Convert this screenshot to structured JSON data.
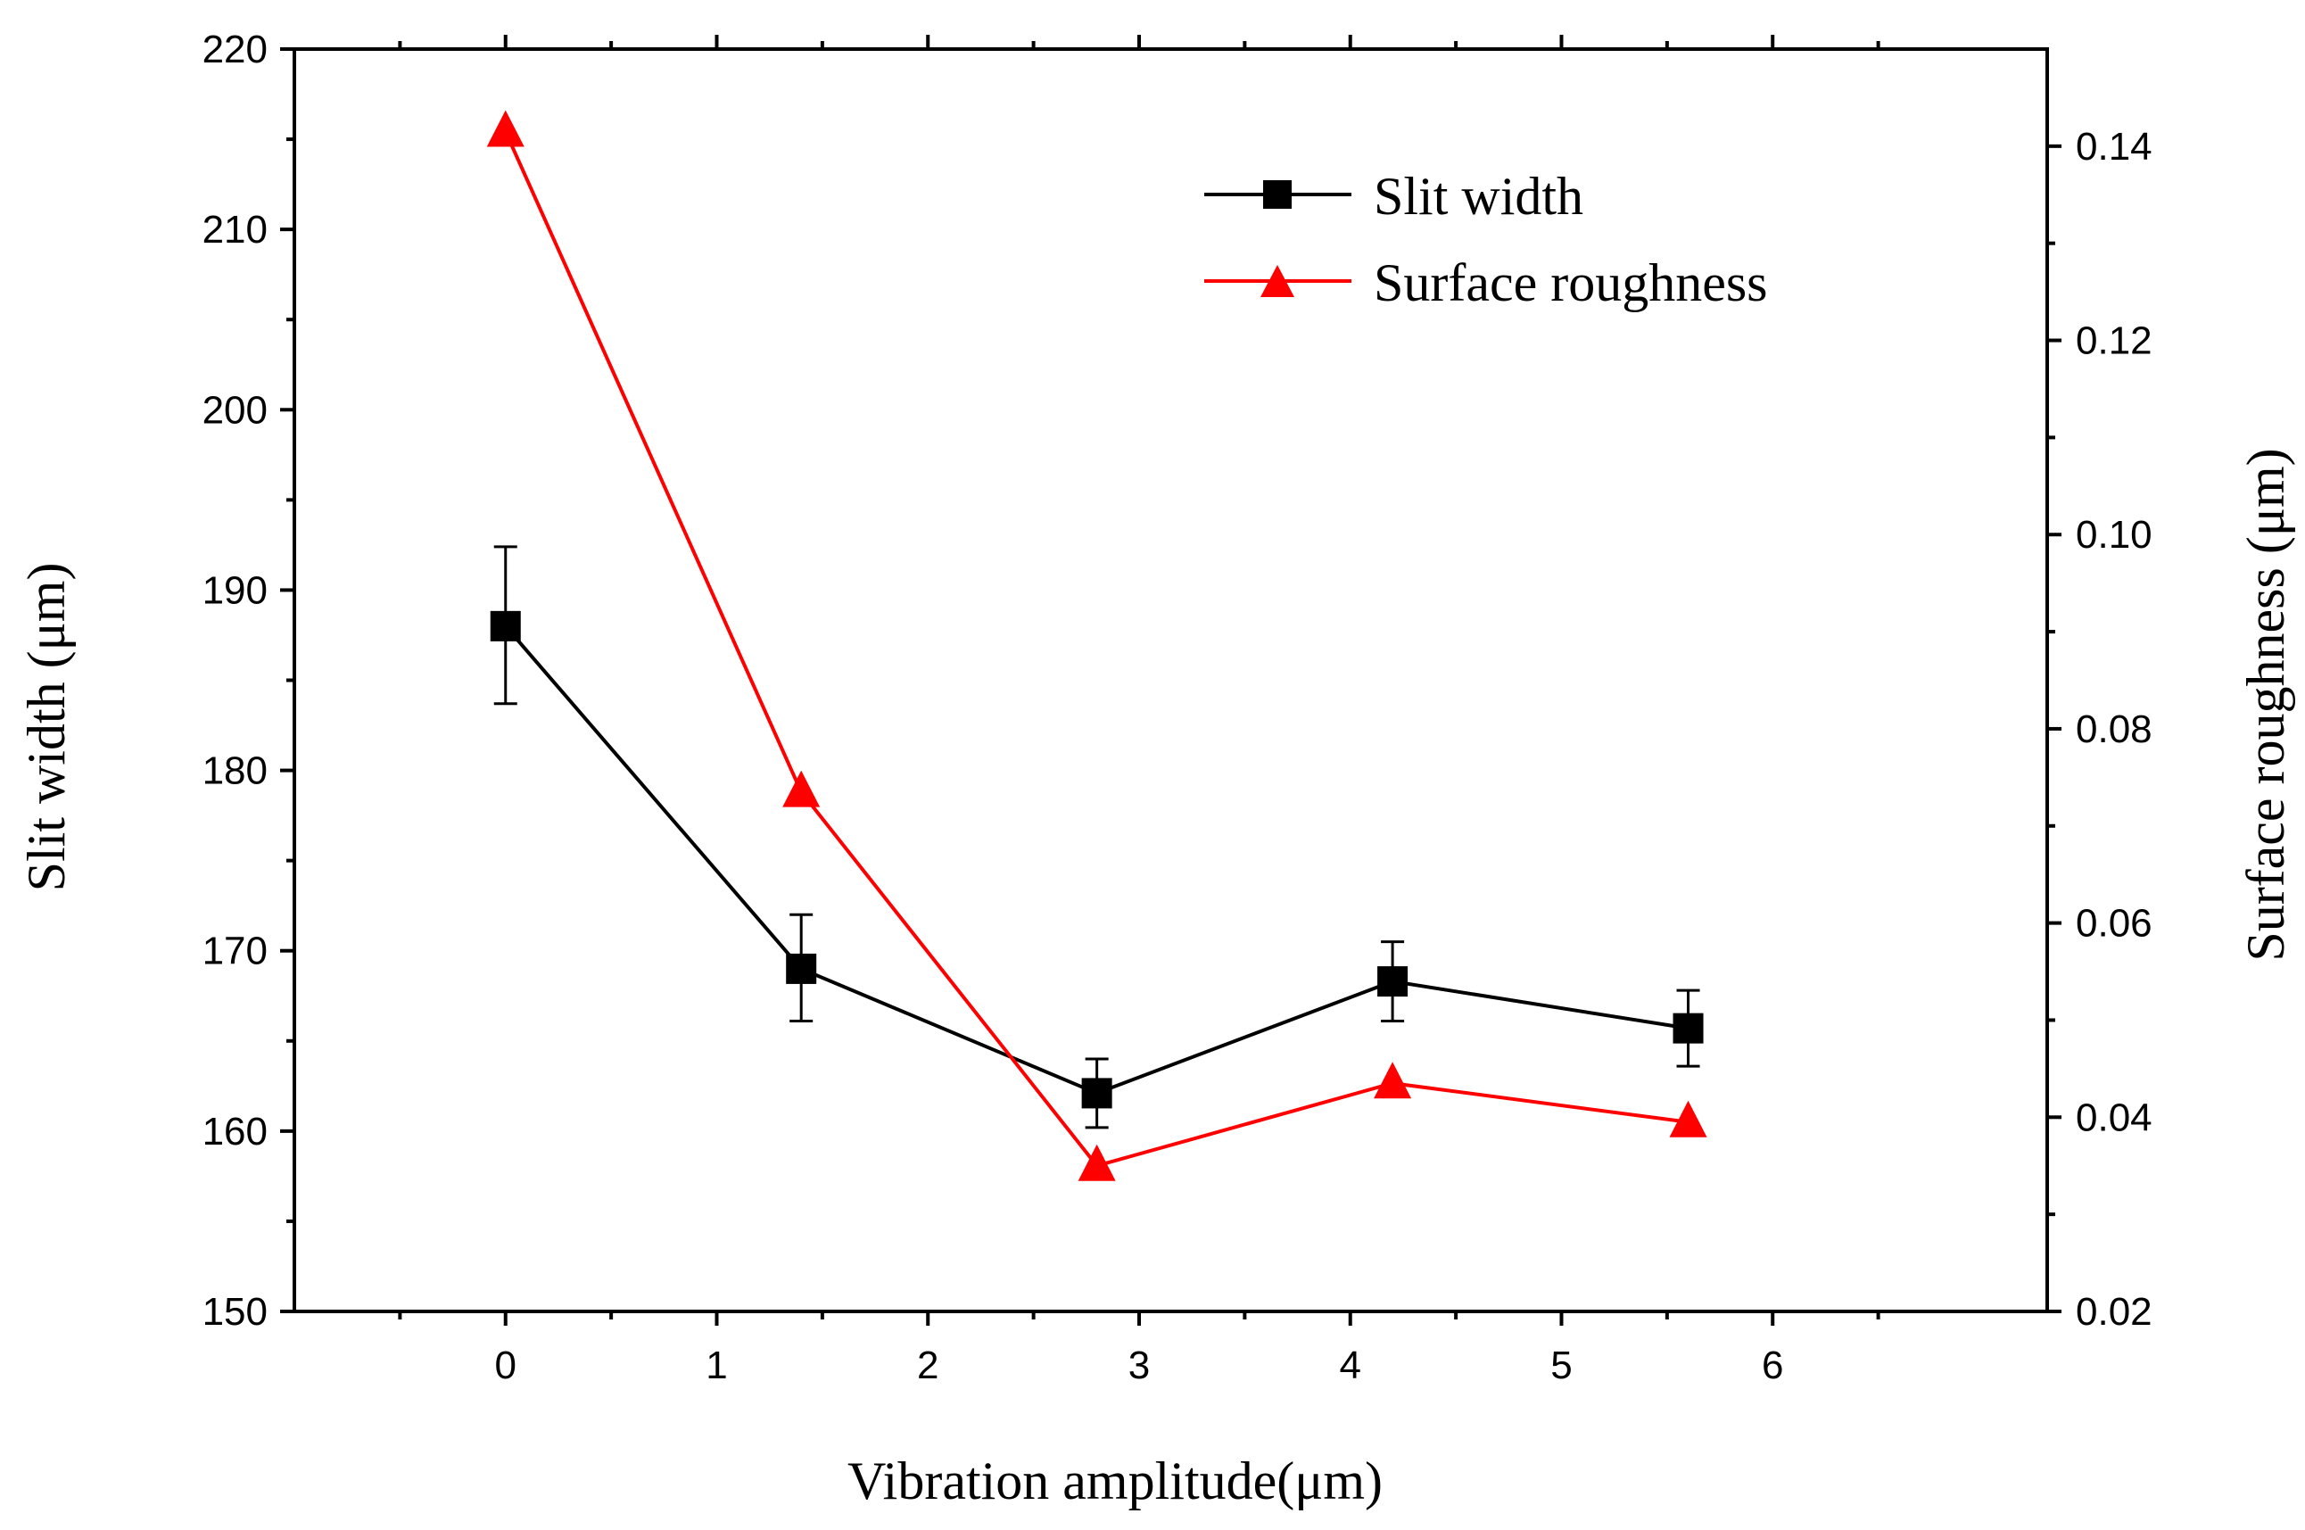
{
  "chart_data": {
    "type": "line",
    "title": "",
    "xlabel": "Vibration amplitude(μm)",
    "ylabel_left": "Slit width  (μm)",
    "ylabel_right": "Surface roughness (μm)",
    "xlim": [
      -1,
      7.3
    ],
    "ylim_left": [
      150,
      220
    ],
    "ylim_right": [
      0.02,
      0.15
    ],
    "x_ticks": [
      0,
      1,
      2,
      3,
      4,
      5,
      6
    ],
    "x_tick_labels": [
      "0",
      "1",
      "2",
      "3",
      "4",
      "5",
      "6"
    ],
    "y_left_ticks": [
      150,
      160,
      170,
      180,
      190,
      200,
      210,
      220
    ],
    "y_left_tick_labels": [
      "150",
      "160",
      "170",
      "180",
      "190",
      "200",
      "210",
      "220"
    ],
    "y_right_ticks": [
      0.02,
      0.04,
      0.06,
      0.08,
      0.1,
      0.12,
      0.14
    ],
    "y_right_tick_labels": [
      "0.02",
      "0.04",
      "0.06",
      "0.08",
      "0.10",
      "0.12",
      "0.14"
    ],
    "legend_position": "top-right",
    "series": [
      {
        "name": "Slit width",
        "axis": "left",
        "color": "#000000",
        "marker": "square",
        "x": [
          0,
          1.4,
          2.8,
          4.2,
          5.6
        ],
        "values": [
          188.0,
          169.0,
          162.1,
          168.3,
          165.7
        ],
        "error_low": [
          183.7,
          166.1,
          160.2,
          166.1,
          163.6
        ],
        "error_high": [
          192.4,
          172.0,
          164.0,
          170.5,
          167.8
        ]
      },
      {
        "name": "Surface roughness",
        "axis": "right",
        "color": "#ff0000",
        "marker": "triangle",
        "x": [
          0,
          1.4,
          2.8,
          4.2,
          5.6
        ],
        "values": [
          0.1415,
          0.0735,
          0.035,
          0.0435,
          0.0395
        ]
      }
    ]
  }
}
